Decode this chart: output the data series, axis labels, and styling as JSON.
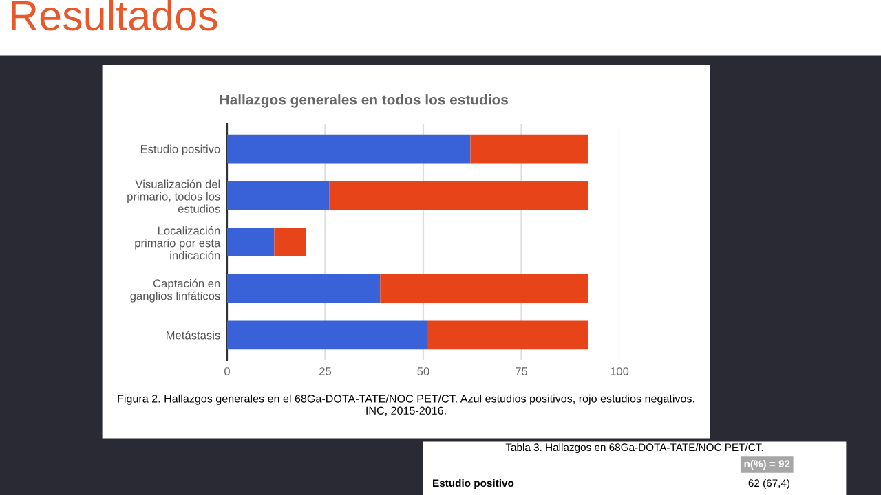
{
  "chart_data": {
    "type": "bar",
    "orientation": "horizontal",
    "stacked": true,
    "title": "Hallazgos generales en todos los estudios",
    "categories": [
      "Estudio positivo",
      "Visualización del\nprimario, todos los\nestudios",
      "Localización\nprimario por esta\nindicación",
      "Captación en\nganglios linfáticos",
      "Metástasis"
    ],
    "series": [
      {
        "color": "#3a62d8",
        "values": [
          62,
          26,
          12,
          39,
          51
        ]
      },
      {
        "color": "#e8441a",
        "values": [
          30,
          66,
          8,
          53,
          41
        ]
      }
    ],
    "xlim": [
      0,
      100
    ],
    "xticks": [
      0,
      25,
      50,
      75,
      100
    ],
    "grid": "x",
    "legend": false,
    "annotations": [
      "Resultados",
      "Figura 2. Hallazgos generales en el 68Ga-DOTA-TATE/NOC PET/CT. Azul estudios positivos, rojo estudios negativos.\nINC, 2015-2016.",
      "Tabla 3. Hallazgos en 68Ga-DOTA-TATE/NOC PET/CT.",
      "n(%) = 92",
      "Estudio positivo",
      "62 (67,4)"
    ]
  }
}
